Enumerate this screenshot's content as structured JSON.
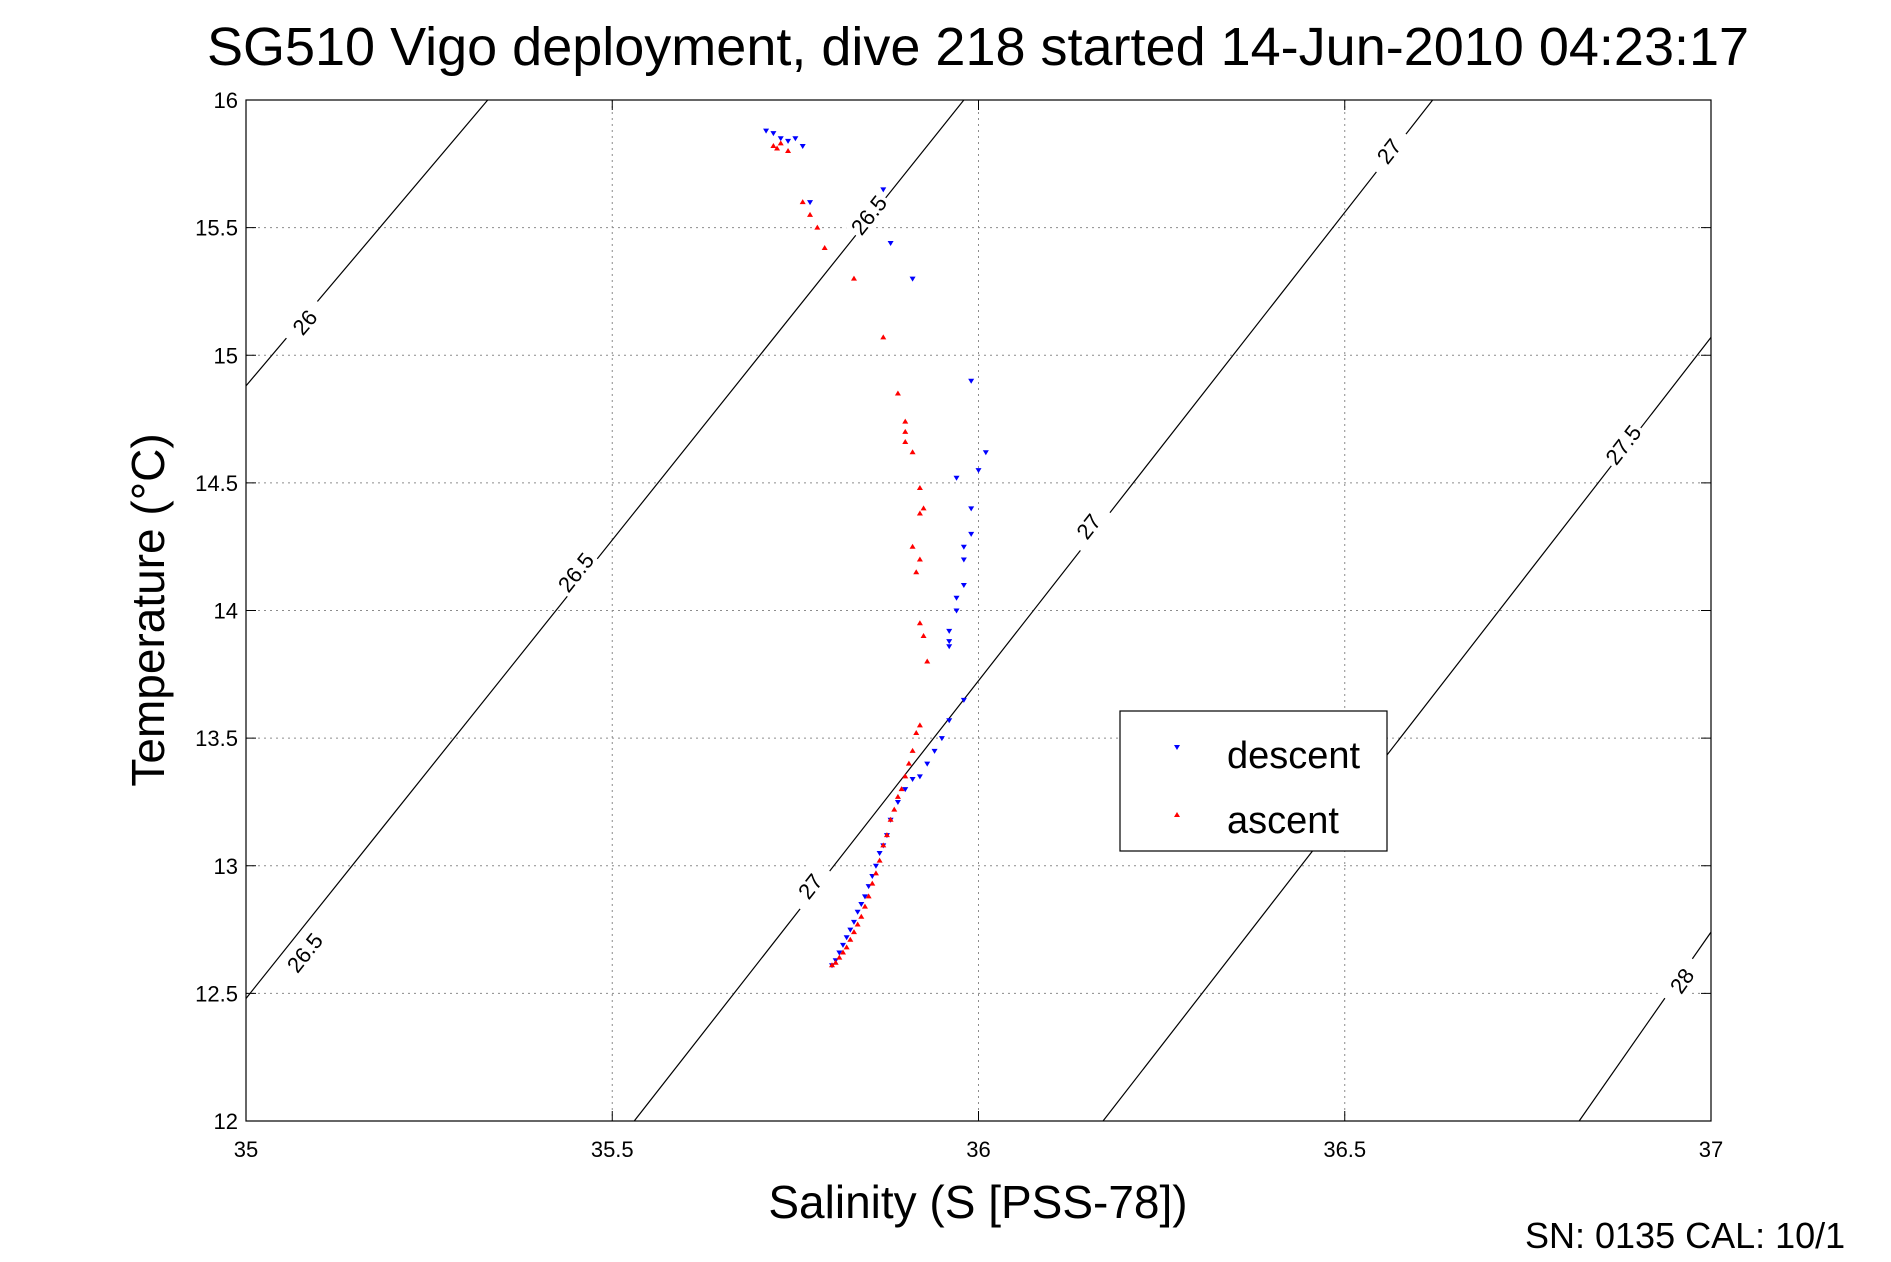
{
  "chart_data": {
    "type": "scatter",
    "title": "SG510 Vigo deployment, dive 218 started 14-Jun-2010 04:23:17",
    "xlabel": "Salinity (S [PSS-78])",
    "ylabel": "Temperature (°C)",
    "xlim": [
      35,
      37
    ],
    "ylim": [
      12,
      16
    ],
    "x_ticks": [
      "35",
      "35.5",
      "36",
      "36.5",
      "37"
    ],
    "y_ticks": [
      "12",
      "12.5",
      "13",
      "13.5",
      "14",
      "14.5",
      "15",
      "15.5",
      "16"
    ],
    "grid": true,
    "legend_position": "right-center",
    "footer": "SN: 0135  CAL: 10/1",
    "density_contours": [
      {
        "sigma": 26.0,
        "points": [
          [
            35.0,
            14.88
          ],
          [
            35.33,
            16.0
          ]
        ],
        "labels": [
          {
            "text": "26",
            "x": 35.08,
            "y": 15.13
          }
        ]
      },
      {
        "sigma": 26.5,
        "points": [
          [
            35.0,
            12.48
          ],
          [
            35.98,
            16.0
          ]
        ],
        "labels": [
          {
            "text": "26.5",
            "x": 35.08,
            "y": 12.66
          },
          {
            "text": "26.5",
            "x": 35.45,
            "y": 14.15
          },
          {
            "text": "26.5",
            "x": 35.85,
            "y": 15.55
          }
        ]
      },
      {
        "sigma": 27.0,
        "points": [
          [
            35.53,
            12.0
          ],
          [
            36.62,
            16.0
          ]
        ],
        "labels": [
          {
            "text": "27",
            "x": 35.77,
            "y": 12.92
          },
          {
            "text": "27",
            "x": 36.15,
            "y": 14.33
          },
          {
            "text": "27",
            "x": 36.56,
            "y": 15.8
          }
        ]
      },
      {
        "sigma": 27.5,
        "points": [
          [
            36.17,
            12.0
          ],
          [
            37.0,
            15.07
          ]
        ],
        "labels": [
          {
            "text": "27.5",
            "x": 36.88,
            "y": 14.65
          }
        ]
      },
      {
        "sigma": 28.0,
        "points": [
          [
            36.82,
            12.0
          ],
          [
            37.0,
            12.74
          ]
        ],
        "labels": [
          {
            "text": "28",
            "x": 36.96,
            "y": 12.55
          }
        ]
      }
    ],
    "series": [
      {
        "name": "descent",
        "color": "#0000ff",
        "marker": "triangle-down",
        "points": [
          [
            35.71,
            15.88
          ],
          [
            35.72,
            15.87
          ],
          [
            35.73,
            15.85
          ],
          [
            35.74,
            15.84
          ],
          [
            35.75,
            15.85
          ],
          [
            35.76,
            15.82
          ],
          [
            35.77,
            15.6
          ],
          [
            35.87,
            15.65
          ],
          [
            35.88,
            15.44
          ],
          [
            35.91,
            15.3
          ],
          [
            35.99,
            14.9
          ],
          [
            35.97,
            14.52
          ],
          [
            36.0,
            14.55
          ],
          [
            36.01,
            14.62
          ],
          [
            35.99,
            14.4
          ],
          [
            35.99,
            14.3
          ],
          [
            35.98,
            14.25
          ],
          [
            35.98,
            14.2
          ],
          [
            35.98,
            14.1
          ],
          [
            35.97,
            14.05
          ],
          [
            35.97,
            14.0
          ],
          [
            35.96,
            13.92
          ],
          [
            35.96,
            13.88
          ],
          [
            35.96,
            13.86
          ],
          [
            35.98,
            13.65
          ],
          [
            35.96,
            13.57
          ],
          [
            35.95,
            13.5
          ],
          [
            35.94,
            13.45
          ],
          [
            35.93,
            13.4
          ],
          [
            35.92,
            13.35
          ],
          [
            35.91,
            13.34
          ],
          [
            35.9,
            13.3
          ],
          [
            35.89,
            13.25
          ],
          [
            35.88,
            13.18
          ],
          [
            35.875,
            13.12
          ],
          [
            35.87,
            13.08
          ],
          [
            35.865,
            13.05
          ],
          [
            35.86,
            13.0
          ],
          [
            35.855,
            12.96
          ],
          [
            35.85,
            12.92
          ],
          [
            35.845,
            12.88
          ],
          [
            35.84,
            12.85
          ],
          [
            35.835,
            12.82
          ],
          [
            35.83,
            12.78
          ],
          [
            35.825,
            12.75
          ],
          [
            35.82,
            12.72
          ],
          [
            35.815,
            12.69
          ],
          [
            35.81,
            12.66
          ],
          [
            35.805,
            12.63
          ],
          [
            35.8,
            12.61
          ]
        ]
      },
      {
        "name": "ascent",
        "color": "#ff0000",
        "marker": "triangle-up",
        "points": [
          [
            35.72,
            15.82
          ],
          [
            35.725,
            15.81
          ],
          [
            35.73,
            15.83
          ],
          [
            35.74,
            15.8
          ],
          [
            35.76,
            15.6
          ],
          [
            35.77,
            15.55
          ],
          [
            35.78,
            15.5
          ],
          [
            35.79,
            15.42
          ],
          [
            35.83,
            15.3
          ],
          [
            35.87,
            15.07
          ],
          [
            35.89,
            14.85
          ],
          [
            35.9,
            14.74
          ],
          [
            35.9,
            14.7
          ],
          [
            35.9,
            14.66
          ],
          [
            35.91,
            14.62
          ],
          [
            35.92,
            14.48
          ],
          [
            35.925,
            14.4
          ],
          [
            35.92,
            14.38
          ],
          [
            35.91,
            14.25
          ],
          [
            35.92,
            14.2
          ],
          [
            35.915,
            14.15
          ],
          [
            35.92,
            13.95
          ],
          [
            35.925,
            13.9
          ],
          [
            35.93,
            13.8
          ],
          [
            35.92,
            13.55
          ],
          [
            35.915,
            13.52
          ],
          [
            35.91,
            13.45
          ],
          [
            35.905,
            13.4
          ],
          [
            35.9,
            13.35
          ],
          [
            35.895,
            13.3
          ],
          [
            35.89,
            13.27
          ],
          [
            35.885,
            13.22
          ],
          [
            35.88,
            13.18
          ],
          [
            35.875,
            13.12
          ],
          [
            35.87,
            13.08
          ],
          [
            35.865,
            13.02
          ],
          [
            35.86,
            12.97
          ],
          [
            35.855,
            12.93
          ],
          [
            35.85,
            12.88
          ],
          [
            35.845,
            12.84
          ],
          [
            35.84,
            12.8
          ],
          [
            35.835,
            12.77
          ],
          [
            35.83,
            12.74
          ],
          [
            35.825,
            12.71
          ],
          [
            35.82,
            12.68
          ],
          [
            35.815,
            12.66
          ],
          [
            35.81,
            12.64
          ],
          [
            35.805,
            12.62
          ],
          [
            35.8,
            12.61
          ]
        ]
      }
    ]
  }
}
